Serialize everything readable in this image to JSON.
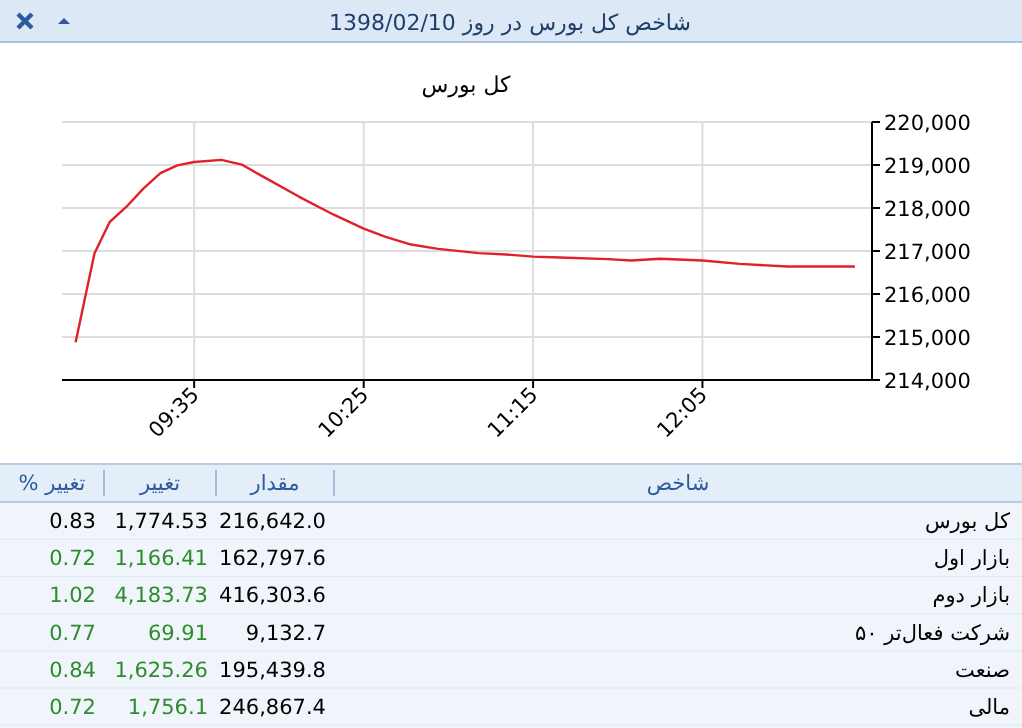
{
  "chart_data": [
    {
      "type": "line",
      "title": "شاخص کل بورس در روز 1398/02/10",
      "subtitle": "کل بورس",
      "x": [
        9.0,
        9.093,
        9.167,
        9.25,
        9.333,
        9.417,
        9.5,
        9.583,
        9.717,
        9.817,
        9.933,
        10.1,
        10.267,
        10.417,
        10.525,
        10.65,
        10.783,
        10.983,
        11.117,
        11.25,
        11.383,
        11.617,
        11.733,
        11.875,
        12.083,
        12.267,
        12.5,
        12.833
      ],
      "series": [
        {
          "color": "#e0202a",
          "values": [
            214880,
            216950,
            217670,
            218030,
            218450,
            218810,
            218990,
            219070,
            219120,
            219010,
            218700,
            218260,
            217850,
            217520,
            217330,
            217150,
            217050,
            216950,
            216920,
            216870,
            216850,
            216810,
            216780,
            216820,
            216780,
            216700,
            216640,
            216640
          ]
        }
      ],
      "xlim": [
        8.933,
        12.917
      ],
      "xticks": [
        {
          "value": 9.583,
          "label": "09:35"
        },
        {
          "value": 10.417,
          "label": "10:25"
        },
        {
          "value": 11.25,
          "label": "11:15"
        },
        {
          "value": 12.083,
          "label": "12:05"
        }
      ],
      "ylim": [
        214000,
        220000
      ],
      "yticks": [
        {
          "value": 214000,
          "label": "214,000"
        },
        {
          "value": 215000,
          "label": "215,000"
        },
        {
          "value": 216000,
          "label": "216,000"
        },
        {
          "value": 217000,
          "label": "217,000"
        },
        {
          "value": 218000,
          "label": "218,000"
        },
        {
          "value": 219000,
          "label": "219,000"
        },
        {
          "value": 220000,
          "label": "220,000"
        }
      ],
      "grid": true,
      "marker": "none",
      "line_style": "solid"
    },
    {
      "type": "other",
      "ylabel": "شاخص",
      "categories": [
        "کل بورس",
        "بازار اول",
        "بازار دوم",
        "۵۰ شرکت فعال‌تر",
        "صنعت",
        "مالی"
      ],
      "series": [
        {
          "name": "مقدار",
          "values": [
            216642.0,
            162797.6,
            416303.6,
            9132.7,
            195439.8,
            246867.4
          ],
          "value_labels": [
            "216,642.0",
            "162,797.6",
            "416,303.6",
            "9,132.7",
            "195,439.8",
            "246,867.4"
          ],
          "colors": [
            "#000000",
            "#000000",
            "#000000",
            "#000000",
            "#000000",
            "#000000"
          ]
        },
        {
          "name": "تغییر",
          "values": [
            1774.53,
            1166.41,
            4183.73,
            69.91,
            1625.26,
            1756.1
          ],
          "value_labels": [
            "1,774.53",
            "1,166.41",
            "4,183.73",
            "69.91",
            "1,625.26",
            "1,756.1"
          ],
          "colors": [
            "#000000",
            "#2e8b2e",
            "#2e8b2e",
            "#2e8b2e",
            "#2e8b2e",
            "#2e8b2e"
          ]
        },
        {
          "name": "% تغییر",
          "values": [
            0.83,
            0.72,
            1.02,
            0.77,
            0.84,
            0.72
          ],
          "value_labels": [
            "0.83",
            "0.72",
            "1.02",
            "0.77",
            "0.84",
            "0.72"
          ],
          "colors": [
            "#000000",
            "#2e8b2e",
            "#2e8b2e",
            "#2e8b2e",
            "#2e8b2e",
            "#2e8b2e"
          ]
        }
      ]
    }
  ]
}
